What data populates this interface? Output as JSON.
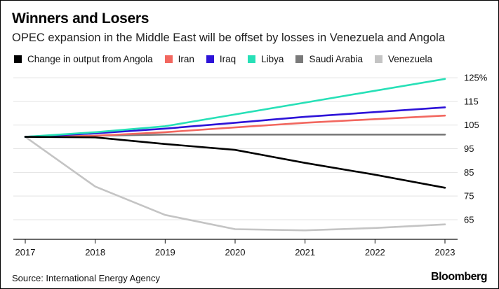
{
  "title": "Winners and Losers",
  "subtitle": "OPEC expansion in the Middle East will be offset by losses in Venezuela and Angola",
  "source": "Source: International Energy Agency",
  "brand": "Bloomberg",
  "chart_data": {
    "type": "line",
    "title": "Winners and Losers",
    "subtitle": "OPEC expansion in the Middle East will be offset by losses in Venezuela and Angola",
    "xlabel": "",
    "ylabel": "",
    "x": [
      2017,
      2018,
      2019,
      2020,
      2021,
      2022,
      2023
    ],
    "xtick_labels": [
      "2017",
      "2018",
      "2019",
      "2020",
      "2021",
      "2022",
      "2023"
    ],
    "yticks": [
      125,
      115,
      105,
      95,
      85,
      75,
      65
    ],
    "ytick_labels": [
      "125%",
      "115",
      "105",
      "95",
      "85",
      "75",
      "65"
    ],
    "ylim": [
      57,
      128
    ],
    "grid": "horizontal",
    "legend_position": "top",
    "series": [
      {
        "name": "Change in output from Angola",
        "color": "#000000",
        "values": [
          100,
          99.8,
          97,
          94.5,
          89,
          84,
          78.5
        ]
      },
      {
        "name": "Iran",
        "color": "#f2675f",
        "values": [
          100,
          100.5,
          102,
          104,
          106,
          107.5,
          109
        ]
      },
      {
        "name": "Iraq",
        "color": "#2d13d8",
        "values": [
          100,
          101.5,
          103.5,
          106,
          108.5,
          110.5,
          112.5
        ]
      },
      {
        "name": "Libya",
        "color": "#27e0b7",
        "values": [
          100,
          102,
          104.5,
          109.5,
          114.5,
          119.5,
          124.5
        ]
      },
      {
        "name": "Saudi Arabia",
        "color": "#7a7a7a",
        "values": [
          100,
          100.5,
          101,
          101,
          101,
          101,
          101
        ]
      },
      {
        "name": "Venezuela",
        "color": "#c4c4c4",
        "values": [
          100,
          79,
          67,
          61,
          60.5,
          61.5,
          63
        ]
      }
    ]
  }
}
